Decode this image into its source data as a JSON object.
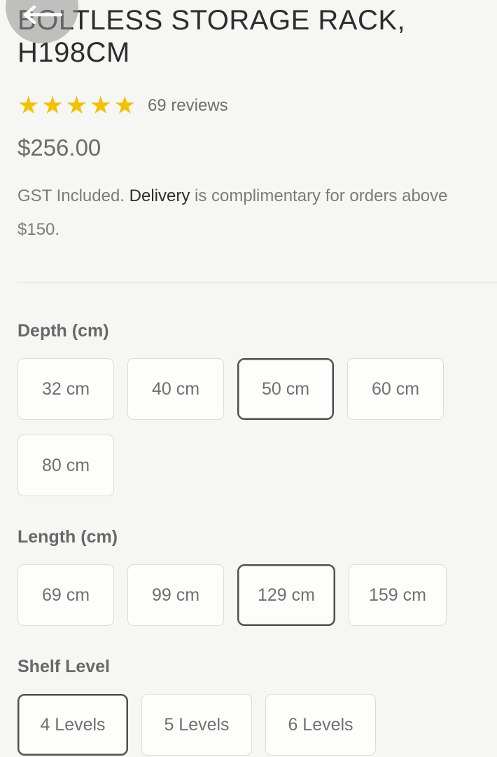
{
  "header": {
    "back_icon": "left-arrow"
  },
  "product": {
    "title": "BOLTLESS STORAGE RACK, H198CM",
    "rating": {
      "stars": 5,
      "star_icon": "★",
      "reviews_text": "69 reviews"
    },
    "price": "$256.00",
    "note": {
      "prefix": "GST Included. ",
      "emphasis": "Delivery",
      "suffix": " is complimentary for orders above $150."
    }
  },
  "options": {
    "sections": [
      {
        "label": "Depth (cm)",
        "values": [
          "32 cm",
          "40 cm",
          "50 cm",
          "60 cm",
          "80 cm"
        ],
        "selected": "50 cm"
      },
      {
        "label": "Length (cm)",
        "values": [
          "69 cm",
          "99 cm",
          "129 cm",
          "159 cm"
        ],
        "selected": "129 cm"
      },
      {
        "label": "Shelf Level",
        "values": [
          "4 Levels",
          "5 Levels",
          "6 Levels"
        ],
        "selected": "4 Levels"
      }
    ]
  },
  "colors": {
    "star": "#F2C200",
    "selected_border": "#4F4F4F"
  }
}
